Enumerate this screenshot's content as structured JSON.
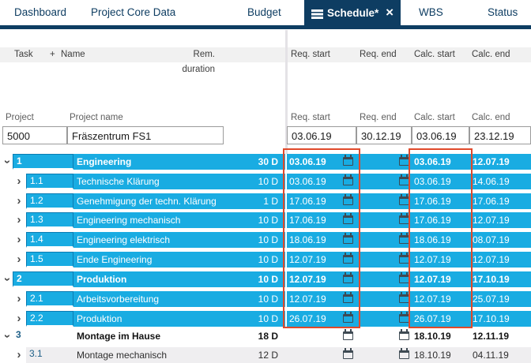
{
  "colors": {
    "accent_cyan": "#19ace2",
    "navy": "#0e3d62",
    "highlight_red": "#e0492a",
    "icon_slate": "#3e4a53",
    "header_gray": "#f1f1f1",
    "row_gray": "#efeef0"
  },
  "tabs": {
    "items": [
      {
        "label": "Dashboard",
        "active": false
      },
      {
        "label": "Project Core Data",
        "active": false
      },
      {
        "label": "Budget",
        "active": false
      },
      {
        "label": "Schedule*",
        "active": true
      },
      {
        "label": "WBS",
        "active": false
      },
      {
        "label": "Status",
        "active": false
      }
    ],
    "close_glyph": "×"
  },
  "grid_header": {
    "task": "Task",
    "add": "+",
    "name": "Name",
    "rem_duration": "Rem. duration",
    "req_start": "Req. start",
    "req_end": "Req. end",
    "calc_start": "Calc. start",
    "calc_end": "Calc. end"
  },
  "project_header": {
    "project": "Project",
    "project_name": "Project name",
    "req_start": "Req. start",
    "req_end": "Req. end",
    "calc_start": "Calc. start",
    "calc_end": "Calc. end"
  },
  "project_row": {
    "id": "5000",
    "name": "Fräszentrum FS1",
    "req_start": "03.06.19",
    "req_end": "30.12.19",
    "calc_start": "03.06.19",
    "calc_end": "23.12.19"
  },
  "tasks": [
    {
      "id": "1",
      "name": "Engineering",
      "duration": "30 D",
      "req_start": "03.06.19",
      "req_end": "",
      "calc_start": "03.06.19",
      "calc_end": "12.07.19",
      "level": 0,
      "bold": true,
      "style": "cyan",
      "expanded": "open"
    },
    {
      "id": "1.1",
      "name": "Technische Klärung",
      "duration": "10 D",
      "req_start": "03.06.19",
      "req_end": "",
      "calc_start": "03.06.19",
      "calc_end": "14.06.19",
      "level": 1,
      "bold": false,
      "style": "cyan",
      "expanded": "closed"
    },
    {
      "id": "1.2",
      "name": "Genehmigung der techn. Klärung",
      "duration": "1 D",
      "req_start": "17.06.19",
      "req_end": "",
      "calc_start": "17.06.19",
      "calc_end": "17.06.19",
      "level": 1,
      "bold": false,
      "style": "cyan",
      "expanded": "closed"
    },
    {
      "id": "1.3",
      "name": "Engineering mechanisch",
      "duration": "10 D",
      "req_start": "17.06.19",
      "req_end": "",
      "calc_start": "17.06.19",
      "calc_end": "12.07.19",
      "level": 1,
      "bold": false,
      "style": "cyan",
      "expanded": "closed"
    },
    {
      "id": "1.4",
      "name": "Engineering elektrisch",
      "duration": "10 D",
      "req_start": "18.06.19",
      "req_end": "",
      "calc_start": "18.06.19",
      "calc_end": "08.07.19",
      "level": 1,
      "bold": false,
      "style": "cyan",
      "expanded": "closed"
    },
    {
      "id": "1.5",
      "name": "Ende Engineering",
      "duration": "10 D",
      "req_start": "12.07.19",
      "req_end": "",
      "calc_start": "12.07.19",
      "calc_end": "12.07.19",
      "level": 1,
      "bold": false,
      "style": "cyan",
      "expanded": "closed"
    },
    {
      "id": "2",
      "name": "Produktion",
      "duration": "10 D",
      "req_start": "12.07.19",
      "req_end": "",
      "calc_start": "12.07.19",
      "calc_end": "17.10.19",
      "level": 0,
      "bold": true,
      "style": "cyan",
      "expanded": "open"
    },
    {
      "id": "2.1",
      "name": "Arbeitsvorbereitung",
      "duration": "10 D",
      "req_start": "12.07.19",
      "req_end": "",
      "calc_start": "12.07.19",
      "calc_end": "25.07.19",
      "level": 1,
      "bold": false,
      "style": "cyan",
      "expanded": "closed"
    },
    {
      "id": "2.2",
      "name": "Produktion",
      "duration": "10 D",
      "req_start": "26.07.19",
      "req_end": "",
      "calc_start": "26.07.19",
      "calc_end": "17.10.19",
      "level": 1,
      "bold": false,
      "style": "cyan",
      "expanded": "closed"
    },
    {
      "id": "3",
      "name": "Montage im Hause",
      "duration": "18 D",
      "req_start": "",
      "req_end": "",
      "calc_start": "18.10.19",
      "calc_end": "12.11.19",
      "level": 0,
      "bold": true,
      "style": "white",
      "expanded": "open"
    },
    {
      "id": "3.1",
      "name": "Montage mechanisch",
      "duration": "12 D",
      "req_start": "",
      "req_end": "",
      "calc_start": "18.10.19",
      "calc_end": "04.11.19",
      "level": 1,
      "bold": false,
      "style": "gray",
      "expanded": "closed"
    }
  ]
}
